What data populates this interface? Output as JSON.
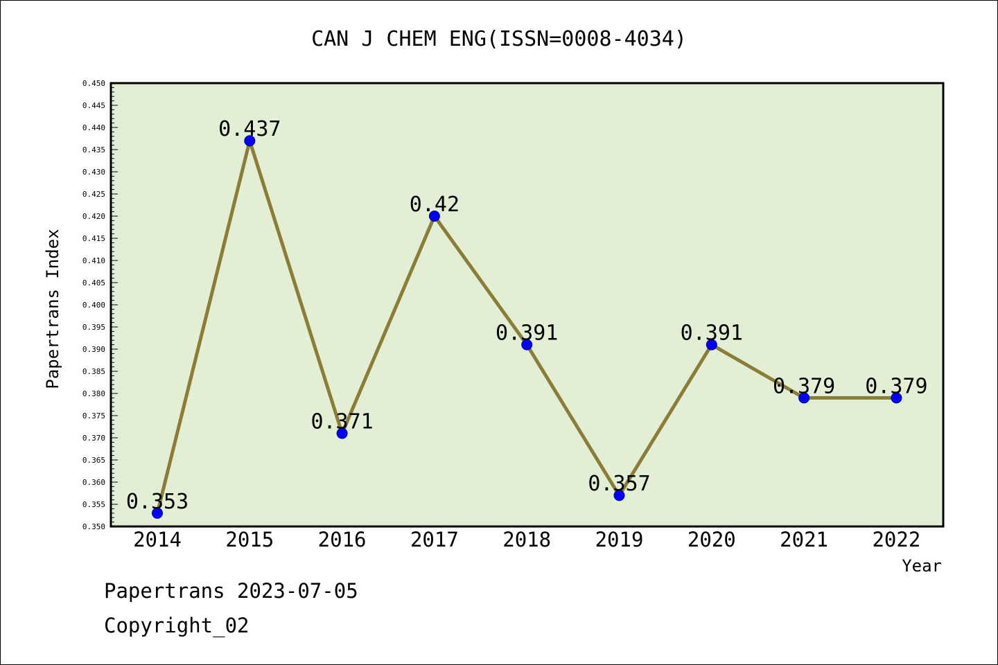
{
  "chart_data": {
    "type": "line",
    "title": "CAN J CHEM ENG(ISSN=0008-4034)",
    "xlabel": "Year",
    "ylabel": "Papertrans Index",
    "categories": [
      "2014",
      "2015",
      "2016",
      "2017",
      "2018",
      "2019",
      "2020",
      "2021",
      "2022"
    ],
    "series": [
      {
        "values": [
          0.353,
          0.437,
          0.371,
          0.42,
          0.391,
          0.357,
          0.391,
          0.379,
          0.379
        ],
        "labels": [
          "0.353",
          "0.437",
          "0.371",
          "0.42",
          "0.391",
          "0.357",
          "0.391",
          "0.379",
          "0.379"
        ]
      }
    ],
    "ylim": [
      0.35,
      0.45
    ],
    "yticks": [
      "0.350",
      "0.355",
      "0.360",
      "0.365",
      "0.370",
      "0.375",
      "0.380",
      "0.385",
      "0.390",
      "0.395",
      "0.400",
      "0.405",
      "0.410",
      "0.415",
      "0.420",
      "0.425",
      "0.430",
      "0.435",
      "0.440",
      "0.445",
      "0.450"
    ],
    "grid": false,
    "legend": "none"
  },
  "footer": {
    "line1": "Papertrans 2023-07-05",
    "line2": "Copyright_02"
  },
  "colors": {
    "plot_background": "#e2efd5",
    "line": "#8b7d35",
    "marker": "#0000ff",
    "marker_stroke": "#00008b"
  }
}
